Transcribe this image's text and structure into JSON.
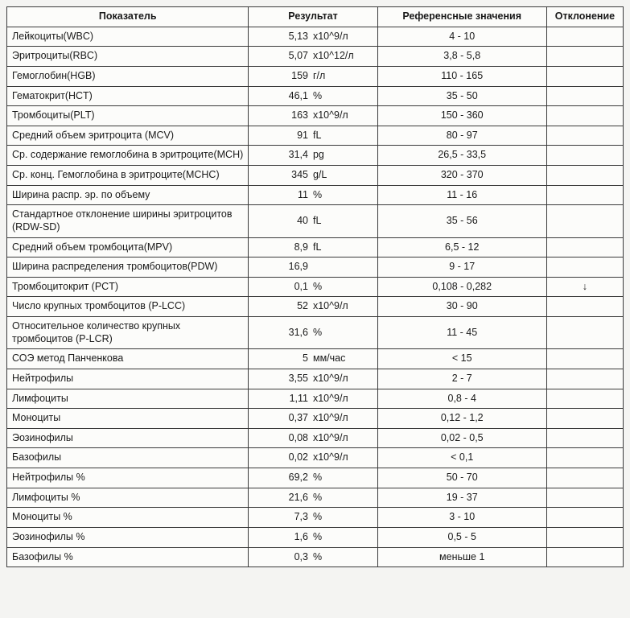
{
  "columns": {
    "indicator": "Показатель",
    "result": "Результат",
    "reference": "Референсные значения",
    "deviation": "Отклонение"
  },
  "rows": [
    {
      "indicator": "Лейкоциты(WBC)",
      "value": "5,13",
      "unit": "x10^9/л",
      "reference": "4 - 10",
      "deviation": ""
    },
    {
      "indicator": "Эритроциты(RBC)",
      "value": "5,07",
      "unit": "x10^12/л",
      "reference": "3,8 - 5,8",
      "deviation": ""
    },
    {
      "indicator": "Гемоглобин(HGB)",
      "value": "159",
      "unit": "г/л",
      "reference": "110 - 165",
      "deviation": ""
    },
    {
      "indicator": "Гематокрит(HCT)",
      "value": "46,1",
      "unit": "%",
      "reference": "35 - 50",
      "deviation": ""
    },
    {
      "indicator": "Тромбоциты(PLT)",
      "value": "163",
      "unit": "x10^9/л",
      "reference": "150 - 360",
      "deviation": ""
    },
    {
      "indicator": "Средний объем эритроцита (MCV)",
      "value": "91",
      "unit": "fL",
      "reference": "80 - 97",
      "deviation": ""
    },
    {
      "indicator": "Ср. содержание гемоглобина в эритроците(MCH)",
      "value": "31,4",
      "unit": "pg",
      "reference": "26,5 - 33,5",
      "deviation": ""
    },
    {
      "indicator": "Ср. конц. Гемоглобина в эритроците(MCHC)",
      "value": "345",
      "unit": "g/L",
      "reference": "320 - 370",
      "deviation": ""
    },
    {
      "indicator": "Ширина распр. эр. по объему",
      "value": "11",
      "unit": "%",
      "reference": "11 - 16",
      "deviation": ""
    },
    {
      "indicator": "Стандартное отклонение ширины эритроцитов (RDW-SD)",
      "value": "40",
      "unit": "fL",
      "reference": "35 - 56",
      "deviation": ""
    },
    {
      "indicator": "Средний объем тромбоцита(MPV)",
      "value": "8,9",
      "unit": "fL",
      "reference": "6,5 - 12",
      "deviation": ""
    },
    {
      "indicator": "Ширина распределения тромбоцитов(PDW)",
      "value": "16,9",
      "unit": "",
      "reference": "9 - 17",
      "deviation": ""
    },
    {
      "indicator": "Тромбоцитокрит (PCT)",
      "value": "0,1",
      "unit": "%",
      "reference": "0,108 - 0,282",
      "deviation": "↓"
    },
    {
      "indicator": "Число крупных тромбоцитов (P-LCC)",
      "value": "52",
      "unit": "x10^9/л",
      "reference": "30 - 90",
      "deviation": ""
    },
    {
      "indicator": "Относительное количество крупных тромбоцитов (P-LCR)",
      "value": "31,6",
      "unit": "%",
      "reference": "11 - 45",
      "deviation": ""
    },
    {
      "indicator": "СОЭ метод Панченкова",
      "value": "5",
      "unit": "мм/час",
      "reference": "< 15",
      "deviation": ""
    },
    {
      "indicator": "Нейтрофилы",
      "value": "3,55",
      "unit": "x10^9/л",
      "reference": "2 - 7",
      "deviation": ""
    },
    {
      "indicator": "Лимфоциты",
      "value": "1,11",
      "unit": "x10^9/л",
      "reference": "0,8 - 4",
      "deviation": ""
    },
    {
      "indicator": "Моноциты",
      "value": "0,37",
      "unit": "x10^9/л",
      "reference": "0,12 - 1,2",
      "deviation": ""
    },
    {
      "indicator": "Эозинофилы",
      "value": "0,08",
      "unit": "x10^9/л",
      "reference": "0,02 - 0,5",
      "deviation": ""
    },
    {
      "indicator": "Базофилы",
      "value": "0,02",
      "unit": "x10^9/л",
      "reference": "< 0,1",
      "deviation": ""
    },
    {
      "indicator": "Нейтрофилы %",
      "value": "69,2",
      "unit": "%",
      "reference": "50 - 70",
      "deviation": ""
    },
    {
      "indicator": "Лимфоциты %",
      "value": "21,6",
      "unit": "%",
      "reference": "19 - 37",
      "deviation": ""
    },
    {
      "indicator": "Моноциты %",
      "value": "7,3",
      "unit": "%",
      "reference": "3 - 10",
      "deviation": ""
    },
    {
      "indicator": "Эозинофилы %",
      "value": "1,6",
      "unit": "%",
      "reference": "0,5 - 5",
      "deviation": ""
    },
    {
      "indicator": "Базофилы %",
      "value": "0,3",
      "unit": "%",
      "reference": "меньше 1",
      "deviation": ""
    }
  ]
}
